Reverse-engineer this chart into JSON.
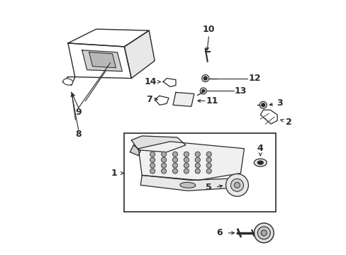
{
  "bg_color": "#ffffff",
  "line_color": "#2a2a2a",
  "fig_width": 4.89,
  "fig_height": 3.6,
  "dpi": 100,
  "label_fontsize": 9,
  "label_fontweight": "bold"
}
